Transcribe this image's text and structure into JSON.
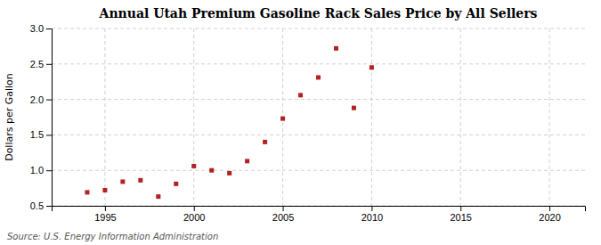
{
  "chart_data": {
    "type": "scatter",
    "title": "Annual Utah Premium Gasoline Rack Sales Price by All Sellers",
    "ylabel": "Dollars per Gallon",
    "annotations": [
      "Source: U.S. Energy Information Administration"
    ],
    "x": [
      1994,
      1995,
      1996,
      1997,
      1998,
      1999,
      2000,
      2001,
      2002,
      2003,
      2004,
      2005,
      2006,
      2007,
      2008,
      2009,
      2010
    ],
    "values": [
      0.69,
      0.72,
      0.84,
      0.86,
      0.63,
      0.81,
      1.06,
      1.0,
      0.96,
      1.13,
      1.4,
      1.73,
      2.06,
      2.31,
      2.72,
      1.88,
      2.45
    ],
    "color": "#b22222",
    "marker": "square",
    "xlim": [
      1992,
      2022
    ],
    "ylim": [
      0.5,
      3.0
    ],
    "xticks": [
      1995,
      2000,
      2005,
      2010,
      2015,
      2020
    ],
    "yticks": [
      0.5,
      {
        "value": 1.0,
        "label": "1.0"
      },
      1.5,
      {
        "value": 2.0,
        "label": "2.0"
      },
      2.5,
      {
        "value": 3.0,
        "label": "3.0"
      }
    ],
    "grid": true
  }
}
